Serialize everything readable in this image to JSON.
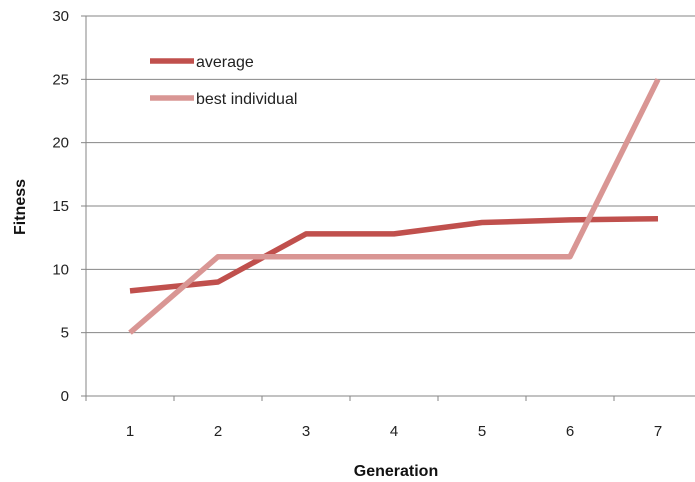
{
  "chart_data": {
    "type": "line",
    "title": "",
    "xlabel": "Generation",
    "ylabel": "Fitness",
    "categories": [
      "1",
      "2",
      "3",
      "4",
      "5",
      "6",
      "7"
    ],
    "ylim": [
      0,
      30
    ],
    "yticks": [
      "0",
      "5",
      "10",
      "15",
      "20",
      "25",
      "30"
    ],
    "grid": "horizontal",
    "legend_position": "top-left",
    "series": [
      {
        "name": "average",
        "color": "#c0504d",
        "values": [
          8.3,
          9.0,
          12.8,
          12.8,
          13.7,
          13.9,
          14.0
        ]
      },
      {
        "name": "best individual",
        "color": "#d99694",
        "values": [
          5,
          11,
          11,
          11,
          11,
          11,
          25
        ]
      }
    ]
  }
}
